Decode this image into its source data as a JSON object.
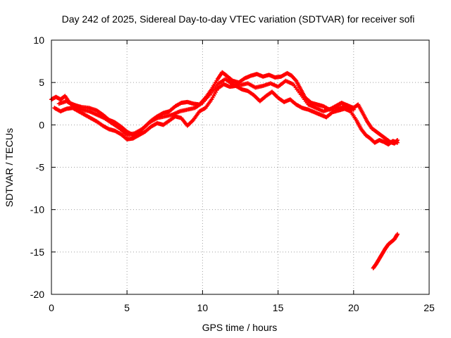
{
  "chart_data": {
    "type": "scatter",
    "title": "Day 242 of 2025, Sidereal Day-to-day VTEC variation (SDTVAR) for receiver sofi",
    "xlabel": "GPS time / hours",
    "ylabel": "SDTVAR / TECUs",
    "xlim": [
      0,
      25
    ],
    "ylim": [
      -20,
      10
    ],
    "xticks": [
      0,
      5,
      10,
      15,
      20,
      25
    ],
    "yticks": [
      -20,
      -15,
      -10,
      -5,
      0,
      5,
      10
    ],
    "grid": true,
    "marker": "+",
    "color": "#ff0000",
    "series": [
      {
        "name": "main-track-upper",
        "points": [
          [
            0.0,
            3.0
          ],
          [
            0.3,
            3.3
          ],
          [
            0.6,
            3.0
          ],
          [
            0.9,
            3.4
          ],
          [
            1.2,
            2.6
          ],
          [
            1.6,
            2.3
          ],
          [
            2.0,
            2.1
          ],
          [
            2.5,
            2.0
          ],
          [
            3.0,
            1.7
          ],
          [
            3.4,
            1.2
          ],
          [
            3.8,
            0.6
          ],
          [
            4.2,
            0.3
          ],
          [
            4.6,
            -0.2
          ],
          [
            5.0,
            -0.8
          ],
          [
            5.4,
            -1.2
          ],
          [
            5.8,
            -0.8
          ],
          [
            6.2,
            -0.2
          ],
          [
            6.6,
            0.5
          ],
          [
            7.0,
            1.0
          ],
          [
            7.4,
            1.4
          ],
          [
            7.8,
            1.6
          ],
          [
            8.2,
            2.2
          ],
          [
            8.6,
            2.6
          ],
          [
            9.0,
            2.7
          ],
          [
            9.4,
            2.5
          ],
          [
            9.8,
            2.4
          ],
          [
            10.2,
            3.2
          ],
          [
            10.6,
            4.2
          ],
          [
            11.0,
            5.4
          ],
          [
            11.3,
            6.2
          ],
          [
            11.6,
            5.8
          ],
          [
            12.0,
            5.2
          ],
          [
            12.4,
            5.0
          ],
          [
            12.8,
            5.5
          ],
          [
            13.2,
            5.8
          ],
          [
            13.6,
            6.0
          ],
          [
            14.0,
            5.7
          ],
          [
            14.4,
            5.9
          ],
          [
            14.8,
            5.6
          ],
          [
            15.2,
            5.7
          ],
          [
            15.6,
            6.1
          ],
          [
            15.9,
            5.8
          ],
          [
            16.2,
            5.2
          ],
          [
            16.5,
            4.2
          ],
          [
            16.8,
            3.2
          ],
          [
            17.2,
            2.6
          ],
          [
            17.6,
            2.4
          ],
          [
            18.0,
            2.2
          ],
          [
            18.4,
            1.8
          ],
          [
            18.8,
            2.2
          ],
          [
            19.2,
            2.6
          ],
          [
            19.6,
            2.3
          ],
          [
            20.0,
            2.0
          ],
          [
            20.3,
            2.4
          ],
          [
            20.6,
            1.4
          ],
          [
            20.9,
            0.4
          ],
          [
            21.2,
            -0.4
          ],
          [
            21.5,
            -0.8
          ],
          [
            21.8,
            -1.2
          ],
          [
            22.1,
            -1.6
          ],
          [
            22.4,
            -2.0
          ],
          [
            22.7,
            -2.2
          ],
          [
            22.9,
            -1.8
          ]
        ]
      },
      {
        "name": "main-track-lower",
        "points": [
          [
            0.2,
            2.0
          ],
          [
            0.6,
            1.6
          ],
          [
            1.0,
            1.9
          ],
          [
            1.4,
            2.0
          ],
          [
            1.8,
            1.6
          ],
          [
            2.2,
            1.2
          ],
          [
            2.6,
            0.8
          ],
          [
            3.0,
            0.4
          ],
          [
            3.4,
            -0.1
          ],
          [
            3.8,
            -0.5
          ],
          [
            4.2,
            -0.7
          ],
          [
            4.6,
            -1.1
          ],
          [
            5.0,
            -1.7
          ],
          [
            5.4,
            -1.6
          ],
          [
            5.8,
            -1.2
          ],
          [
            6.2,
            -0.8
          ],
          [
            6.6,
            -0.2
          ],
          [
            7.0,
            0.2
          ],
          [
            7.4,
            0.0
          ],
          [
            7.8,
            0.5
          ],
          [
            8.2,
            1.0
          ],
          [
            8.6,
            0.8
          ],
          [
            9.0,
            -0.1
          ],
          [
            9.4,
            0.6
          ],
          [
            9.8,
            1.6
          ],
          [
            10.2,
            2.0
          ],
          [
            10.6,
            3.0
          ],
          [
            11.0,
            4.3
          ],
          [
            11.4,
            4.8
          ],
          [
            11.8,
            4.5
          ],
          [
            12.2,
            4.6
          ],
          [
            12.6,
            4.2
          ],
          [
            13.0,
            4.0
          ],
          [
            13.4,
            3.5
          ],
          [
            13.8,
            2.8
          ],
          [
            14.2,
            3.4
          ],
          [
            14.6,
            3.9
          ],
          [
            15.0,
            3.2
          ],
          [
            15.4,
            2.7
          ],
          [
            15.8,
            3.0
          ],
          [
            16.2,
            2.4
          ],
          [
            16.6,
            2.0
          ],
          [
            17.0,
            1.8
          ],
          [
            17.4,
            1.5
          ],
          [
            17.8,
            1.2
          ],
          [
            18.2,
            0.9
          ],
          [
            18.6,
            1.5
          ],
          [
            19.0,
            1.7
          ],
          [
            19.4,
            1.9
          ],
          [
            19.8,
            1.6
          ],
          [
            20.2,
            0.5
          ],
          [
            20.5,
            -0.5
          ],
          [
            20.8,
            -1.2
          ],
          [
            21.1,
            -1.6
          ],
          [
            21.4,
            -2.1
          ],
          [
            21.7,
            -1.8
          ],
          [
            22.0,
            -2.0
          ],
          [
            22.3,
            -2.3
          ],
          [
            22.6,
            -1.9
          ],
          [
            22.9,
            -2.1
          ]
        ]
      },
      {
        "name": "middle-band",
        "points": [
          [
            0.5,
            2.5
          ],
          [
            1.0,
            2.8
          ],
          [
            1.5,
            2.2
          ],
          [
            2.0,
            1.8
          ],
          [
            2.5,
            1.6
          ],
          [
            3.0,
            1.2
          ],
          [
            3.5,
            0.8
          ],
          [
            4.0,
            0.2
          ],
          [
            4.5,
            -0.4
          ],
          [
            5.0,
            -1.2
          ],
          [
            5.5,
            -1.0
          ],
          [
            6.0,
            -0.5
          ],
          [
            6.5,
            0.3
          ],
          [
            7.0,
            0.8
          ],
          [
            7.5,
            1.0
          ],
          [
            8.0,
            1.2
          ],
          [
            8.5,
            1.6
          ],
          [
            9.0,
            1.8
          ],
          [
            9.5,
            2.0
          ],
          [
            10.0,
            2.6
          ],
          [
            10.5,
            3.6
          ],
          [
            11.0,
            4.8
          ],
          [
            11.5,
            5.4
          ],
          [
            12.0,
            4.8
          ],
          [
            12.5,
            4.7
          ],
          [
            13.0,
            4.9
          ],
          [
            13.5,
            4.4
          ],
          [
            14.0,
            4.6
          ],
          [
            14.5,
            4.9
          ],
          [
            15.0,
            4.5
          ],
          [
            15.5,
            5.2
          ],
          [
            16.0,
            4.8
          ],
          [
            16.5,
            3.6
          ],
          [
            17.0,
            2.4
          ],
          [
            17.5,
            2.0
          ],
          [
            18.0,
            1.6
          ],
          [
            18.5,
            1.9
          ],
          [
            19.0,
            2.0
          ],
          [
            19.5,
            2.2
          ],
          [
            20.0,
            1.8
          ]
        ]
      },
      {
        "name": "offset-segment",
        "points": [
          [
            21.3,
            -16.9
          ],
          [
            21.5,
            -16.4
          ],
          [
            21.7,
            -15.8
          ],
          [
            21.9,
            -15.2
          ],
          [
            22.1,
            -14.6
          ],
          [
            22.3,
            -14.1
          ],
          [
            22.5,
            -13.8
          ],
          [
            22.7,
            -13.5
          ],
          [
            22.9,
            -12.9
          ]
        ]
      }
    ]
  }
}
